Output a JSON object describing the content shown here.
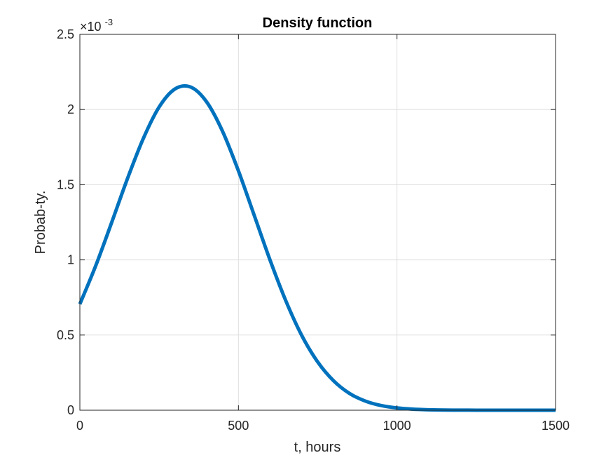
{
  "chart_data": {
    "type": "line",
    "title": "Density function",
    "xlabel": "t, hours",
    "ylabel": "Probab-ty.",
    "xlim": [
      0,
      1500
    ],
    "ylim": [
      0,
      0.0025
    ],
    "xticks": [
      0,
      500,
      1000,
      1500
    ],
    "xtick_labels": [
      "0",
      "500",
      "1000",
      "1500"
    ],
    "yticks": [
      0,
      0.0005,
      0.001,
      0.0015,
      0.002,
      0.0025
    ],
    "ytick_labels": [
      "0",
      "0.5",
      "1",
      "1.5",
      "2",
      "2.5"
    ],
    "y_exponent_label": "×10",
    "y_exponent_power": "-3",
    "grid": true,
    "series": [
      {
        "color": "#0072bd",
        "x": [
          0,
          50,
          100,
          150,
          200,
          250,
          300,
          350,
          400,
          450,
          500,
          550,
          600,
          650,
          700,
          750,
          800,
          850,
          900,
          950,
          1000,
          1050,
          1100,
          1150,
          1200,
          1250,
          1300,
          1350,
          1400,
          1450,
          1500
        ],
        "y": [
          0.000706,
          0.000961,
          0.001247,
          0.00154,
          0.001807,
          0.002017,
          0.002137,
          0.002149,
          0.00205,
          0.001855,
          0.001592,
          0.001295,
          0.000997,
          0.000725,
          0.000496,
          0.000321,
          0.000196,
          0.000112,
          6.1e-05,
          3.1e-05,
          1.5e-05,
          7e-06,
          3e-06,
          1e-06,
          5e-07,
          2e-07,
          1e-07,
          3e-08,
          1e-08,
          0.0,
          0.0
        ]
      }
    ]
  }
}
